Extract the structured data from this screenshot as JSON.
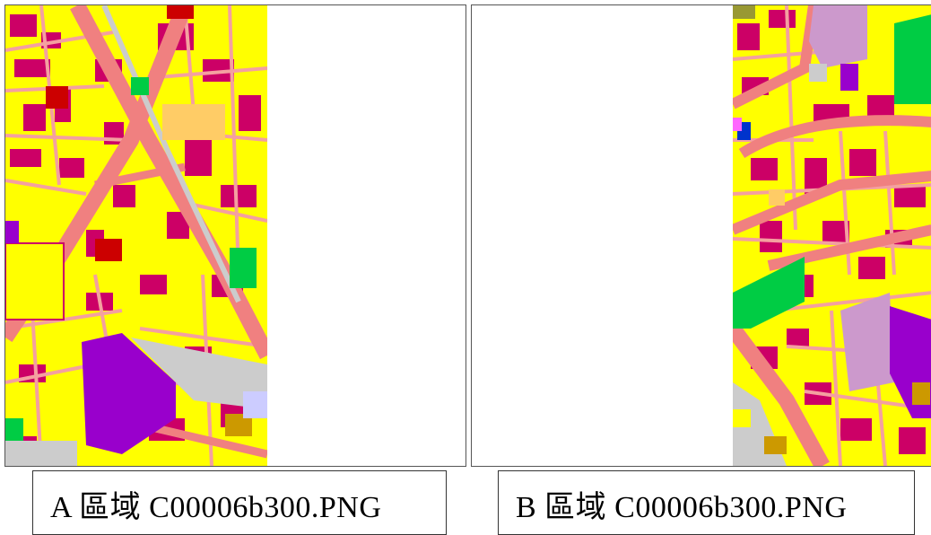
{
  "panels": [
    {
      "id": "A",
      "caption": "A 區域  C00006b300.PNG"
    },
    {
      "id": "B",
      "caption": "B 區域  C00006b300.PNG"
    }
  ],
  "colors": {
    "residential": "#ffff00",
    "commercial": "#cc0066",
    "road": "#f08080",
    "road_minor": "#f4a0a0",
    "rail": "#cccccc",
    "park": "#00cc44",
    "public": "#9900cc",
    "institution": "#cc99cc",
    "industrial": "#cc0000",
    "parking": "#ffcc66",
    "water": "#0033cc",
    "other": "#cc9900"
  }
}
